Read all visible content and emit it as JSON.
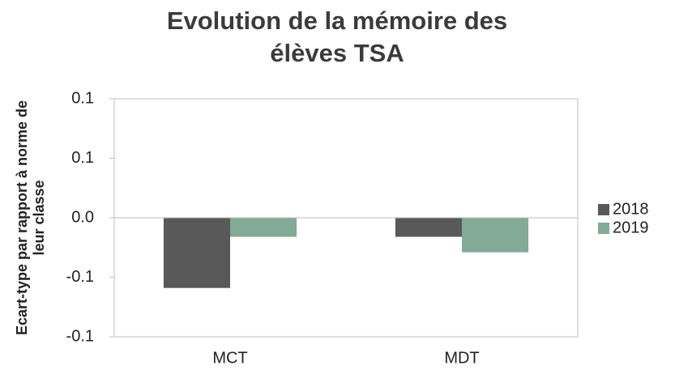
{
  "chart_data": {
    "type": "bar",
    "title": "Evolution de la mémoire des élèves TSA",
    "y_label": "Ecart-type par rapport à norme de leur classe",
    "categories": [
      "MCT",
      "MDT"
    ],
    "series": [
      {
        "name": "2018",
        "color": "#595959",
        "values": [
          -0.059,
          -0.016
        ]
      },
      {
        "name": "2019",
        "color": "#82aa96",
        "values": [
          -0.016,
          -0.029
        ]
      }
    ],
    "ylim": [
      -0.1,
      0.1
    ],
    "yticks": [
      -0.1,
      {
        "value": -0.05,
        "label": "-0.1"
      },
      {
        "value": 0,
        "label": "0.0"
      },
      {
        "value": 0.05,
        "label": "0.1"
      },
      0.1
    ],
    "grid": false,
    "legend": "right"
  }
}
